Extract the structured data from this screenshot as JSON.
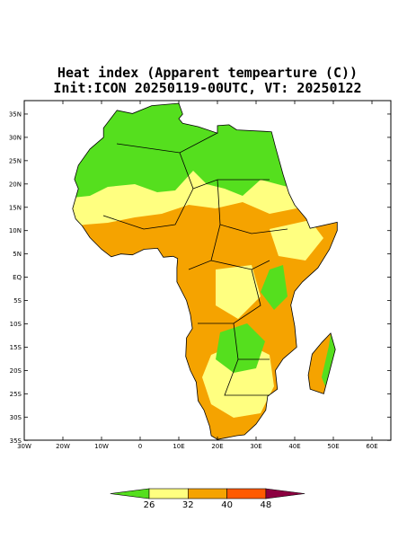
{
  "title": "Heat index (Apparent tempearture (C))",
  "subtitle": "Init:ICON 20250119-00UTC, VT: 20250122",
  "map": {
    "lat_labels": [
      "35N",
      "30N",
      "25N",
      "20N",
      "15N",
      "10N",
      "5N",
      "EQ",
      "5S",
      "10S",
      "15S",
      "20S",
      "25S",
      "30S",
      "35S"
    ],
    "lon_labels": [
      "30W",
      "20W",
      "10W",
      "0",
      "10E",
      "20E",
      "30E",
      "40E",
      "50E",
      "60E"
    ]
  },
  "colorbar": {
    "levels": [
      26,
      32,
      40,
      48
    ],
    "colors": [
      "#55df1e",
      "#ffff80",
      "#f5a300",
      "#ff5a00",
      "#8c0040"
    ]
  }
}
